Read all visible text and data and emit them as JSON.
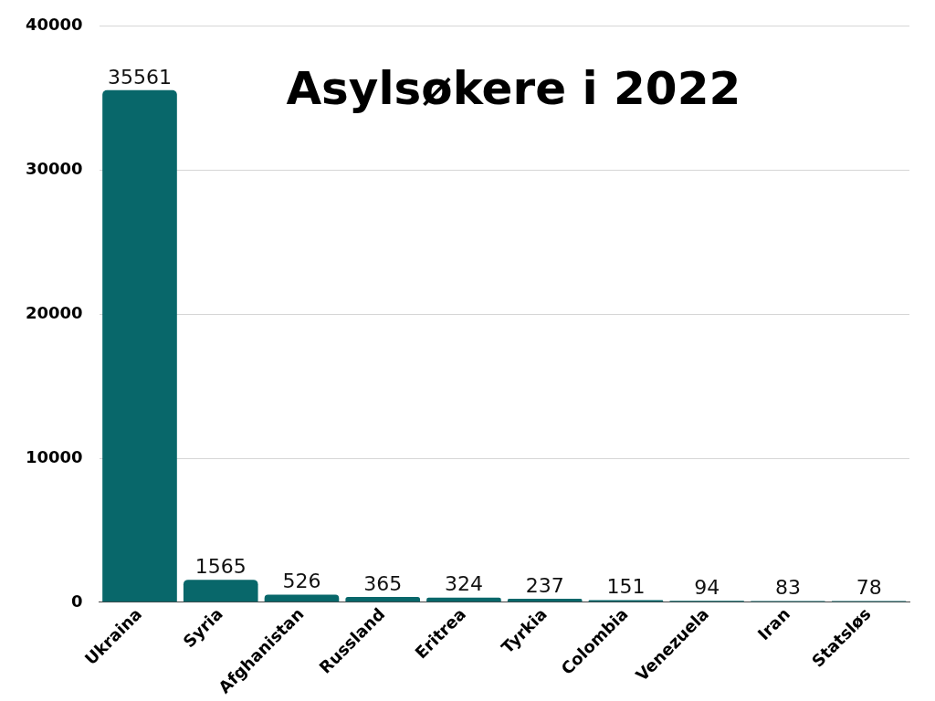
{
  "chart_data": {
    "type": "bar",
    "title": "Asylsøkere i 2022",
    "categories": [
      "Ukraina",
      "Syria",
      "Afghanistan",
      "Russland",
      "Eritrea",
      "Tyrkia",
      "Colombia",
      "Venezuela",
      "Iran",
      "Statsløs"
    ],
    "values": [
      35561,
      1565,
      526,
      365,
      324,
      237,
      151,
      94,
      83,
      78
    ],
    "color": "#08676a",
    "ylim": [
      0,
      40000
    ],
    "yticks": [
      0,
      10000,
      20000,
      30000,
      40000
    ],
    "grid": "y",
    "data_labels": true,
    "legend": false
  }
}
